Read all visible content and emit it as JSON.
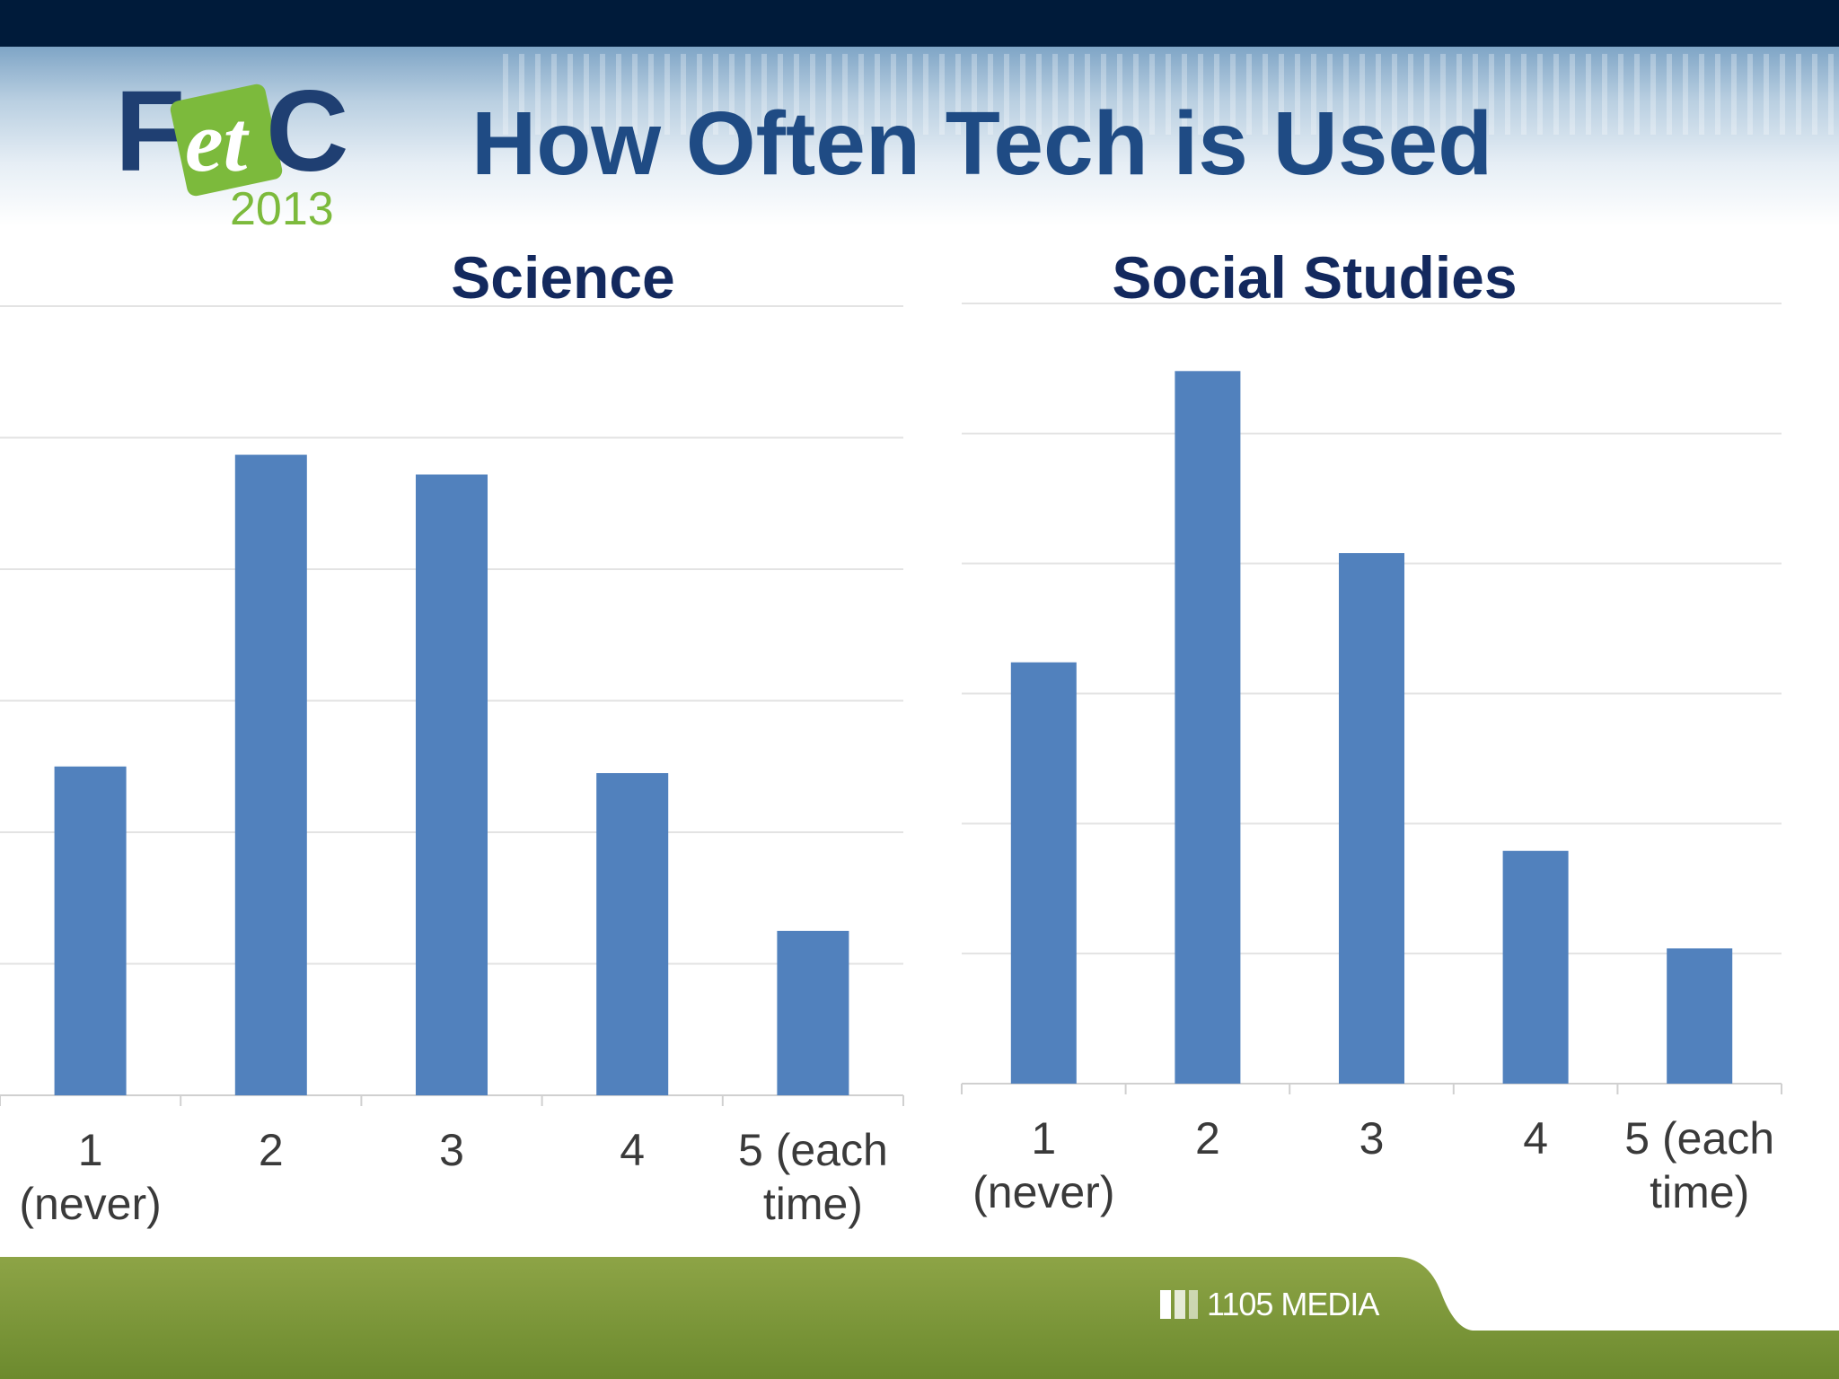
{
  "slide": {
    "title": "How Often Tech is Used"
  },
  "logo": {
    "letters_left": "F",
    "letters_mid": "et",
    "letters_right": "C",
    "year": "2013"
  },
  "footer": {
    "brand": "1105 MEDIA"
  },
  "colors": {
    "bar": "#5181bd",
    "title": "#1f4b84",
    "chart_title": "#13295e",
    "footer_green": "#7f9a3c"
  },
  "chart_data": [
    {
      "type": "bar",
      "title": "Science",
      "categories": [
        "1 (never)",
        "2",
        "3",
        "4",
        "5 (each time)"
      ],
      "tick_lines": [
        [
          "1",
          "(never)"
        ],
        [
          "2"
        ],
        [
          "3"
        ],
        [
          "4"
        ],
        [
          "5 (each",
          "time)"
        ]
      ],
      "values": [
        2.5,
        4.87,
        4.72,
        2.45,
        1.25
      ],
      "ylim": [
        0,
        6
      ],
      "grid": true,
      "xlabel": "",
      "ylabel": ""
    },
    {
      "type": "bar",
      "title": "Social Studies",
      "categories": [
        "1 (never)",
        "2",
        "3",
        "4",
        "5 (each time)"
      ],
      "tick_lines": [
        [
          "1",
          "(never)"
        ],
        [
          "2"
        ],
        [
          "3"
        ],
        [
          "4"
        ],
        [
          "5 (each",
          "time)"
        ]
      ],
      "values": [
        3.24,
        5.48,
        4.08,
        1.79,
        1.04
      ],
      "ylim": [
        0,
        6
      ],
      "grid": true,
      "xlabel": "",
      "ylabel": ""
    }
  ]
}
